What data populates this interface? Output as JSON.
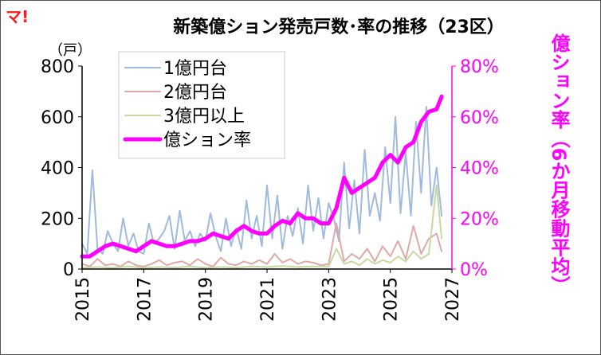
{
  "brand": {
    "logo": "マ!"
  },
  "chart_data": {
    "type": "line",
    "title": "新築億ション発売戸数･率の推移（23区）",
    "y_left_unit": "（戸）",
    "y_left_ticks": [
      "0",
      "200",
      "400",
      "600",
      "800"
    ],
    "y_left_range": [
      0,
      800
    ],
    "y_right_label": "億ション率（6か月移動平均）",
    "y_right_ticks": [
      "0%",
      "20%",
      "40%",
      "60%",
      "80%"
    ],
    "y_right_range": [
      0,
      80
    ],
    "x_ticks": [
      "2015",
      "2017",
      "2019",
      "2021",
      "2023",
      "2025",
      "2027"
    ],
    "x_range": [
      2015,
      2027
    ],
    "legend_position": "top-left",
    "colors": {
      "s1": "#9fbadb",
      "s2": "#e0a8a8",
      "s3": "#c6d9a0",
      "rate": "#ff00ff",
      "right_axis": "#ff00ff"
    },
    "series": [
      {
        "name": "1億円台",
        "axis": "left",
        "x": [
          2015.0,
          2015.167,
          2015.333,
          2015.5,
          2015.667,
          2015.833,
          2016.0,
          2016.167,
          2016.333,
          2016.5,
          2016.667,
          2016.833,
          2017.0,
          2017.167,
          2017.333,
          2017.5,
          2017.667,
          2017.833,
          2018.0,
          2018.167,
          2018.333,
          2018.5,
          2018.667,
          2018.833,
          2019.0,
          2019.167,
          2019.333,
          2019.5,
          2019.667,
          2019.833,
          2020.0,
          2020.167,
          2020.333,
          2020.5,
          2020.667,
          2020.833,
          2021.0,
          2021.167,
          2021.333,
          2021.5,
          2021.667,
          2021.833,
          2022.0,
          2022.167,
          2022.333,
          2022.5,
          2022.667,
          2022.833,
          2023.0,
          2023.167,
          2023.333,
          2023.5,
          2023.667,
          2023.833,
          2024.0,
          2024.167,
          2024.333,
          2024.5,
          2024.667,
          2024.833,
          2025.0,
          2025.167,
          2025.333,
          2025.5,
          2025.667,
          2025.833,
          2026.0,
          2026.167,
          2026.333,
          2026.5,
          2026.667
        ],
        "values": [
          100,
          60,
          390,
          80,
          60,
          150,
          100,
          70,
          200,
          90,
          140,
          70,
          60,
          180,
          100,
          120,
          150,
          210,
          80,
          230,
          110,
          150,
          90,
          140,
          110,
          220,
          130,
          70,
          200,
          90,
          160,
          80,
          270,
          120,
          210,
          90,
          330,
          120,
          290,
          80,
          210,
          130,
          240,
          100,
          330,
          150,
          280,
          120,
          260,
          200,
          110,
          420,
          160,
          350,
          140,
          470,
          210,
          300,
          190,
          480,
          260,
          600,
          220,
          460,
          210,
          580,
          300,
          640,
          250,
          400,
          210
        ]
      },
      {
        "name": "2億円台",
        "axis": "left",
        "x": [
          2015.0,
          2015.25,
          2015.5,
          2015.75,
          2016.0,
          2016.25,
          2016.5,
          2016.75,
          2017.0,
          2017.25,
          2017.5,
          2017.75,
          2018.0,
          2018.25,
          2018.5,
          2018.75,
          2019.0,
          2019.25,
          2019.5,
          2019.75,
          2020.0,
          2020.25,
          2020.5,
          2020.75,
          2021.0,
          2021.25,
          2021.5,
          2021.75,
          2022.0,
          2022.25,
          2022.5,
          2022.75,
          2023.0,
          2023.25,
          2023.5,
          2023.75,
          2024.0,
          2024.25,
          2024.5,
          2024.75,
          2025.0,
          2025.25,
          2025.5,
          2025.75,
          2026.0,
          2026.25,
          2026.5,
          2026.667
        ],
        "values": [
          20,
          10,
          40,
          15,
          20,
          10,
          30,
          15,
          10,
          20,
          35,
          15,
          25,
          30,
          15,
          40,
          20,
          10,
          45,
          20,
          15,
          30,
          20,
          35,
          20,
          60,
          25,
          40,
          20,
          30,
          25,
          15,
          20,
          180,
          30,
          60,
          40,
          80,
          30,
          90,
          50,
          110,
          40,
          170,
          60,
          120,
          140,
          70
        ]
      },
      {
        "name": "3億円以上",
        "axis": "left",
        "x": [
          2015.0,
          2015.5,
          2016.0,
          2016.5,
          2017.0,
          2017.5,
          2018.0,
          2018.5,
          2019.0,
          2019.5,
          2020.0,
          2020.5,
          2021.0,
          2021.5,
          2022.0,
          2022.5,
          2023.0,
          2023.25,
          2023.5,
          2023.75,
          2024.0,
          2024.25,
          2024.5,
          2024.75,
          2025.0,
          2025.25,
          2025.5,
          2025.75,
          2026.0,
          2026.25,
          2026.5,
          2026.667
        ],
        "values": [
          5,
          8,
          5,
          10,
          5,
          8,
          6,
          10,
          5,
          8,
          6,
          10,
          8,
          12,
          8,
          10,
          10,
          80,
          20,
          30,
          15,
          40,
          20,
          35,
          25,
          50,
          30,
          70,
          40,
          60,
          330,
          120
        ]
      },
      {
        "name": "億ション率",
        "axis": "right",
        "x": [
          2015.0,
          2015.25,
          2015.5,
          2015.75,
          2016.0,
          2016.25,
          2016.5,
          2016.75,
          2017.0,
          2017.25,
          2017.5,
          2017.75,
          2018.0,
          2018.25,
          2018.5,
          2018.75,
          2019.0,
          2019.25,
          2019.5,
          2019.75,
          2020.0,
          2020.25,
          2020.5,
          2020.75,
          2021.0,
          2021.25,
          2021.5,
          2021.75,
          2022.0,
          2022.25,
          2022.5,
          2022.75,
          2023.0,
          2023.25,
          2023.5,
          2023.75,
          2024.0,
          2024.25,
          2024.5,
          2024.75,
          2025.0,
          2025.25,
          2025.5,
          2025.75,
          2026.0,
          2026.25,
          2026.5,
          2026.667
        ],
        "values": [
          5,
          5,
          7,
          9,
          10,
          9,
          8,
          7,
          9,
          11,
          10,
          9,
          9,
          10,
          11,
          11,
          12,
          14,
          13,
          12,
          15,
          17,
          15,
          14,
          14,
          17,
          19,
          18,
          22,
          20,
          20,
          18,
          18,
          24,
          36,
          30,
          32,
          34,
          36,
          42,
          45,
          42,
          48,
          50,
          58,
          62,
          63,
          68
        ]
      }
    ]
  }
}
